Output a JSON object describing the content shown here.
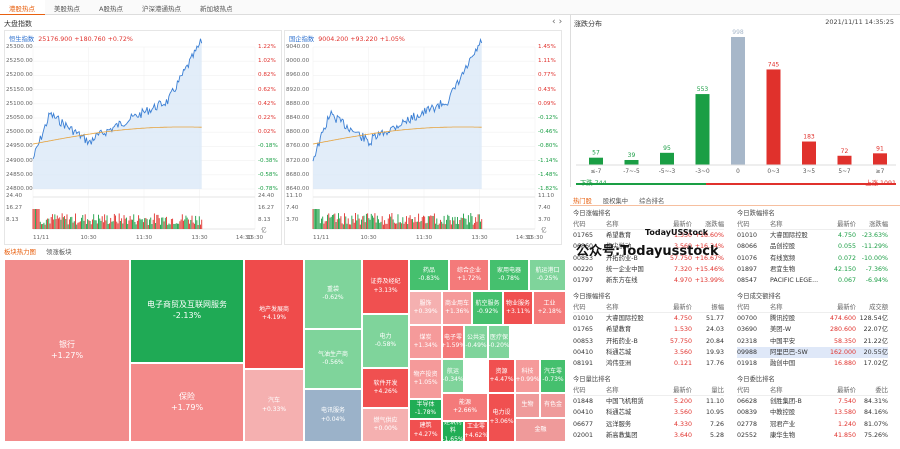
{
  "tabs": [
    "港股热点",
    "美股热点",
    "A股热点",
    "沪深港通热点",
    "新加坡热点"
  ],
  "index_panel": {
    "title": "大盘指数"
  },
  "hsi": {
    "name": "恒生指数",
    "value": "25176.900",
    "change": "+180.760",
    "pct": "+0.72%",
    "left_axis": [
      "25300.00",
      "25250.00",
      "25200.00",
      "25150.00",
      "25100.00",
      "25050.00",
      "25000.00",
      "24950.00",
      "24900.00",
      "24850.00",
      "24800.00"
    ],
    "right_axis": [
      "1.22%",
      "1.02%",
      "0.82%",
      "0.62%",
      "0.42%",
      "0.22%",
      "0.02%",
      "-0.18%",
      "-0.38%",
      "-0.58%",
      "-0.78%"
    ],
    "vol_axis": [
      "24.40",
      "16.27",
      "8.13"
    ],
    "vol_right": [
      "24.40",
      "16.27",
      "8.13"
    ],
    "vol_unit": "亿",
    "xticks": [
      "11/11",
      "10:30",
      "11:30",
      "13:30",
      "14:30",
      "15:30"
    ]
  },
  "hsce": {
    "name": "国企指数",
    "value": "9004.200",
    "change": "+93.220",
    "pct": "+1.05%",
    "left_axis": [
      "9040.00",
      "9000.00",
      "8960.00",
      "8920.00",
      "8880.00",
      "8840.00",
      "8800.00",
      "8760.00",
      "8720.00",
      "8680.00",
      "8640.00"
    ],
    "right_axis": [
      "1.45%",
      "1.11%",
      "0.77%",
      "0.43%",
      "0.09%",
      "-0.12%",
      "-0.46%",
      "-0.80%",
      "-1.14%",
      "-1.48%",
      "-1.82%"
    ],
    "vol_axis": [
      "11.10",
      "7.40",
      "3.70"
    ],
    "vol_right": [
      "11.10",
      "7.40",
      "3.70"
    ],
    "vol_unit": "亿",
    "xticks": [
      "11/11",
      "10:30",
      "11:30",
      "13:30",
      "14:30",
      "15:30"
    ]
  },
  "distribution": {
    "title": "涨跌分布",
    "datetime": "2021/11/11 14:35:25",
    "link": "更新",
    "chart_data": {
      "type": "bar",
      "categories": [
        "≤-7",
        "-7~-5",
        "-5~-3",
        "-3~0",
        "0",
        "0~3",
        "3~5",
        "5~7",
        "≥7"
      ],
      "values": [
        57,
        39,
        95,
        553,
        998,
        745,
        183,
        72,
        91
      ]
    },
    "down_label": "下跌 744",
    "up_label": "上涨 1091"
  },
  "hot": {
    "tabs": [
      "热门股",
      "股权集中",
      "综合排名"
    ],
    "sections": [
      {
        "title": "今日涨幅排名",
        "headers": [
          "代码",
          "名称",
          "最新价",
          "涨跌幅"
        ],
        "rows": [
          [
            "01765",
            "希望教育",
            "1.530",
            "+18.60%"
          ],
          [
            "06860",
            "指尖悦动",
            "3.560",
            "+16.34%"
          ],
          [
            "00853",
            "开拓药业-B",
            "57.750",
            "+16.67%"
          ],
          [
            "00220",
            "统一企业中国",
            "7.320",
            "+15.46%"
          ],
          [
            "01797",
            "新东方在线",
            "4.970",
            "+13.99%"
          ]
        ]
      },
      {
        "title": "今日跌幅排名",
        "headers": [
          "代码",
          "名称",
          "最新价",
          "涨跌幅"
        ],
        "rows": [
          [
            "01010",
            "大睿国际控股",
            "4.750",
            "-23.63%"
          ],
          [
            "08066",
            "品创控股",
            "0.055",
            "-11.29%"
          ],
          [
            "01076",
            "有线宽频",
            "0.072",
            "-10.00%"
          ],
          [
            "01897",
            "君宜生物",
            "42.150",
            "-7.36%"
          ],
          [
            "08547",
            "PACIFIC LEGE...",
            "0.067",
            "-6.94%"
          ]
        ]
      },
      {
        "title": "今日振幅排名",
        "headers": [
          "代码",
          "名称",
          "最新价",
          "振幅"
        ],
        "rows": [
          [
            "01010",
            "大睿国际控股",
            "4.750",
            "51.77"
          ],
          [
            "01765",
            "希望教育",
            "1.530",
            "24.03"
          ],
          [
            "00853",
            "开拓药业-B",
            "57.750",
            "20.84"
          ],
          [
            "00410",
            "科通芯城",
            "3.560",
            "19.93"
          ],
          [
            "08191",
            "鸿伟亚洲",
            "0.121",
            "17.76"
          ]
        ]
      },
      {
        "title": "今日成交额排名",
        "headers": [
          "代码",
          "名称",
          "最新价",
          "成交额"
        ],
        "rows": [
          [
            "00700",
            "腾讯控股",
            "474.600",
            "128.54亿"
          ],
          [
            "03690",
            "美团-W",
            "280.600",
            "22.07亿"
          ],
          [
            "02318",
            "中国平安",
            "58.350",
            "21.22亿"
          ],
          [
            "09988",
            "阿里巴巴-SW",
            "162.000",
            "20.55亿"
          ],
          [
            "01918",
            "融创中国",
            "16.880",
            "17.02亿"
          ]
        ]
      },
      {
        "title": "今日量比排名",
        "headers": [
          "代码",
          "名称",
          "最新价",
          "量比"
        ],
        "rows": [
          [
            "01848",
            "中国飞机租赁",
            "5.200",
            "11.10"
          ],
          [
            "00410",
            "科通芯城",
            "3.560",
            "10.95"
          ],
          [
            "06677",
            "远洋服务",
            "4.330",
            "7.26"
          ],
          [
            "02001",
            "新高教集团",
            "3.640",
            "5.28"
          ]
        ]
      },
      {
        "title": "今日委比排名",
        "headers": [
          "代码",
          "名称",
          "最新价",
          "委比"
        ],
        "rows": [
          [
            "06628",
            "创胜集团-B",
            "7.540",
            "84.31%"
          ],
          [
            "00839",
            "中教控股",
            "13.580",
            "84.16%"
          ],
          [
            "02778",
            "冠君产业",
            "1.240",
            "81.07%"
          ],
          [
            "02552",
            "康华生物",
            "41.850",
            "75.26%"
          ]
        ]
      }
    ]
  },
  "sectors": {
    "tabs": [
      "板块热力图",
      "领涨板块"
    ],
    "cells": [
      {
        "name": "银行",
        "pct": "+1.27%"
      },
      {
        "name": "电子商贸及互联网服务",
        "pct": "-2.13%"
      },
      {
        "name": "保险",
        "pct": "+1.79%"
      },
      {
        "name": "地产发展商",
        "pct": "+4.19%"
      },
      {
        "name": "汽车",
        "pct": "+0.33%"
      },
      {
        "name": "重袋",
        "pct": "-0.62%"
      },
      {
        "name": "气油生产商",
        "pct": "-0.56%"
      },
      {
        "name": "电讯服务",
        "pct": "+0.04%"
      },
      {
        "name": "证券及经纪",
        "pct": "+3.13%"
      },
      {
        "name": "电力",
        "pct": "-0.58%"
      },
      {
        "name": "软件开发",
        "pct": "+4.26%"
      },
      {
        "name": "燃气供应",
        "pct": "+0.00%"
      },
      {
        "name": "药品",
        "pct": "-0.83%"
      },
      {
        "name": "综合企业",
        "pct": "+1.72%"
      },
      {
        "name": "家用电器",
        "pct": "-0.78%"
      },
      {
        "name": "航运港口",
        "pct": "-0.25%"
      },
      {
        "name": "服饰",
        "pct": "+0.39%"
      },
      {
        "name": "商业用车",
        "pct": "+1.36%"
      },
      {
        "name": "航空服务",
        "pct": "-0.92%"
      },
      {
        "name": "物业服务",
        "pct": "+3.11%"
      },
      {
        "name": "工业",
        "pct": "+2.18%"
      },
      {
        "name": "煤炭",
        "pct": "+1.34%"
      },
      {
        "name": "电子零",
        "pct": "+1.59%"
      },
      {
        "name": "公共运",
        "pct": "-0.49%"
      },
      {
        "name": "医疗保",
        "pct": "-0.20%"
      },
      {
        "name": "物产投资",
        "pct": "+1.05%"
      },
      {
        "name": "航运",
        "pct": "-0.34%"
      },
      {
        "name": "资源",
        "pct": "+4.47%"
      },
      {
        "name": "科技",
        "pct": "+0.99%"
      },
      {
        "name": "汽车零",
        "pct": "-0.73%"
      },
      {
        "name": "半导体",
        "pct": "-1.78%"
      },
      {
        "name": "能源",
        "pct": "+2.66%"
      },
      {
        "name": "建筑",
        "pct": "+4.27%"
      },
      {
        "name": "建筑材料",
        "pct": "-1.65%"
      },
      {
        "name": "工业零",
        "pct": "+4.62%"
      },
      {
        "name": "电力设",
        "pct": "+3.06%"
      },
      {
        "name": "生物",
        "pct": ""
      },
      {
        "name": "有色金",
        "pct": ""
      },
      {
        "name": "金融",
        "pct": ""
      }
    ]
  },
  "watermark": {
    "main": "公众号:Todayusstock",
    "small": "TodayUSStock"
  }
}
